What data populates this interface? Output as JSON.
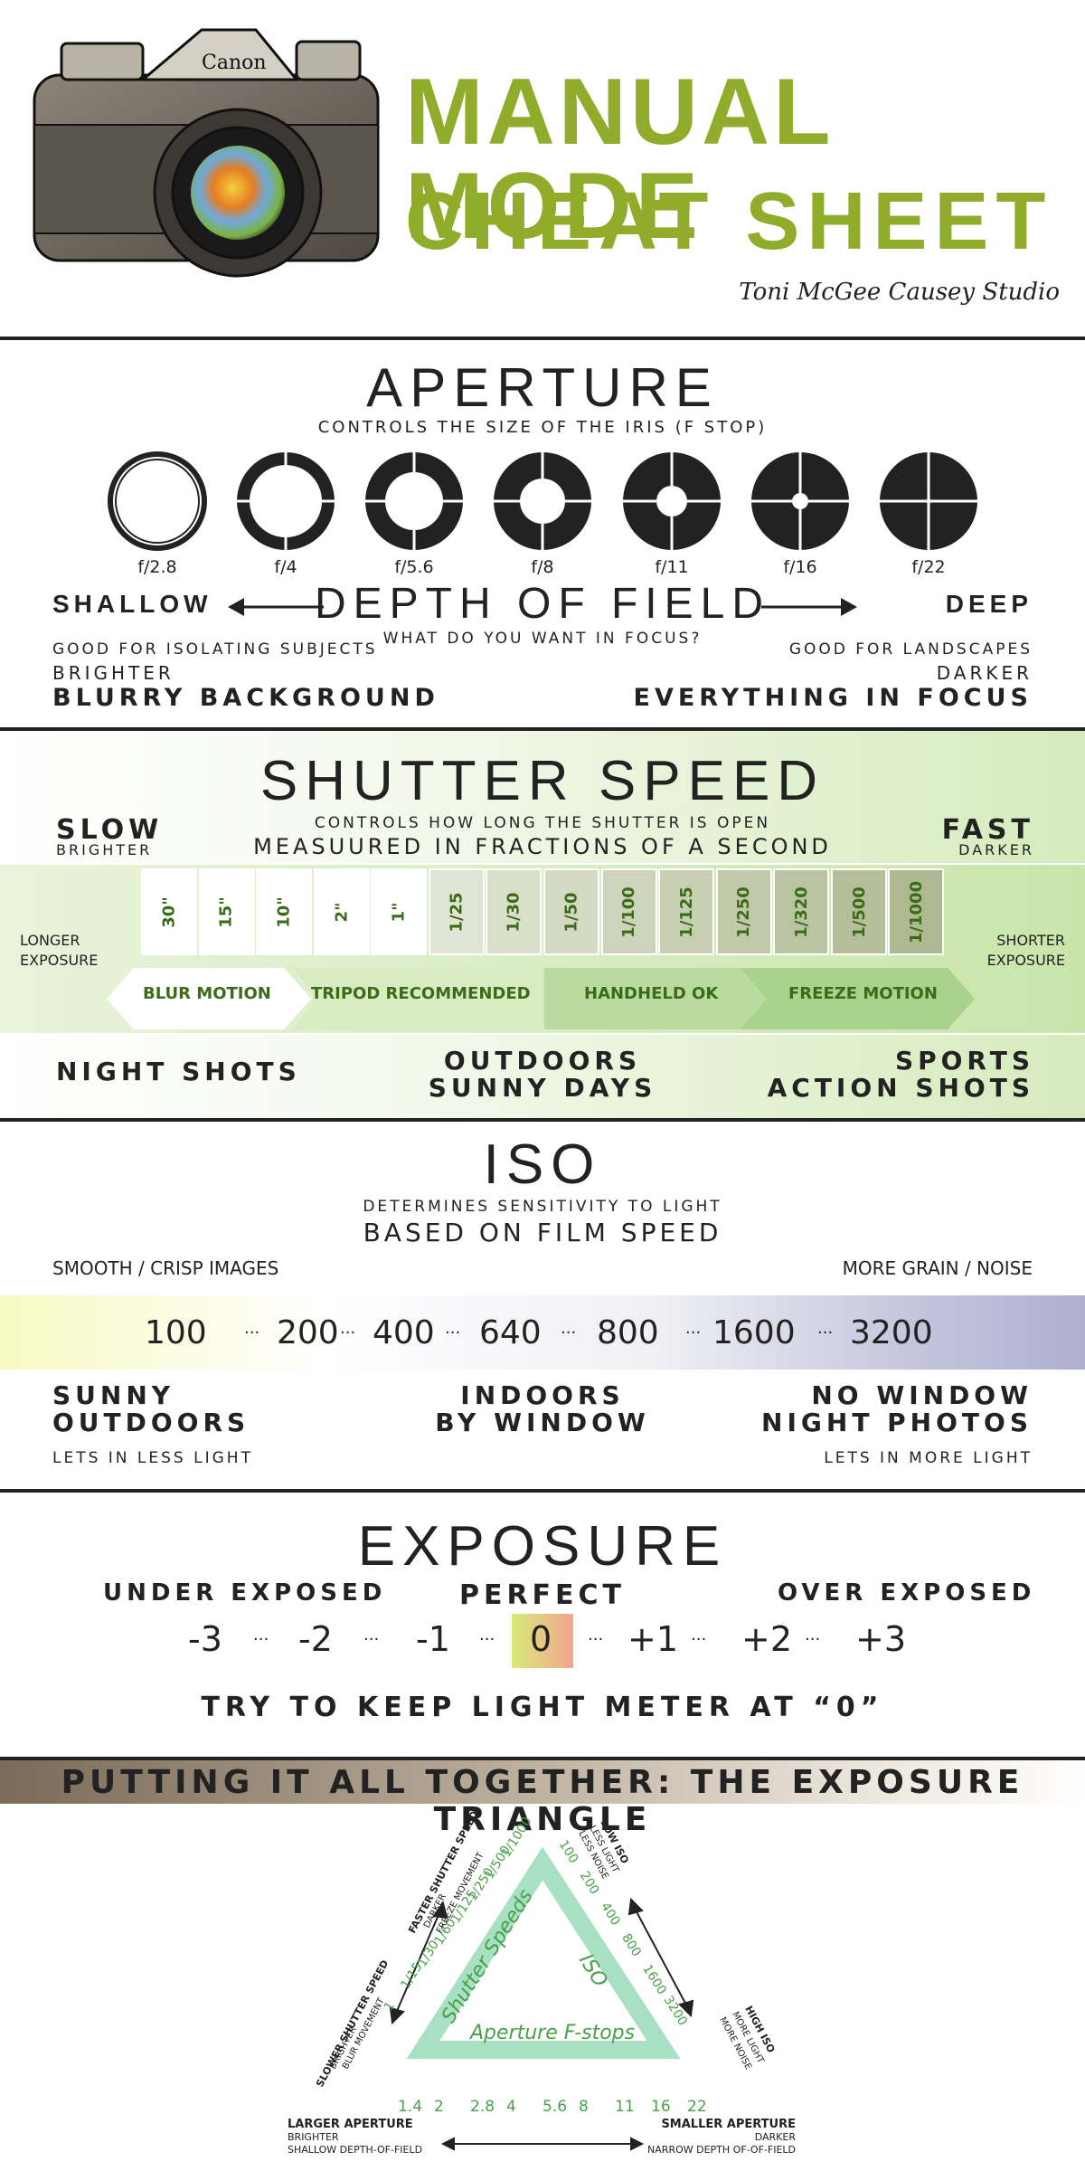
{
  "header": {
    "title_line1": "MANUAL MODE",
    "title_line2": "CHEAT SHEET",
    "studio": "Toni McGee Causey Studio",
    "camera_brand": "Canon"
  },
  "aperture": {
    "title": "APERTURE",
    "subtitle": "CONTROLS THE SIZE OF THE IRIS (F STOP)",
    "fstops": [
      "f/2.8",
      "f/4",
      "f/5.6",
      "f/8",
      "f/11",
      "f/16",
      "f/22"
    ],
    "left_label": "SHALLOW",
    "center_label": "DEPTH OF FIELD",
    "center_sub": "WHAT DO YOU WANT IN FOCUS?",
    "right_label": "DEEP",
    "left_note1": "GOOD FOR ISOLATING SUBJECTS",
    "left_note2": "BRIGHTER",
    "left_note3": "BLURRY BACKGROUND",
    "right_note1": "GOOD FOR LANDSCAPES",
    "right_note2": "DARKER",
    "right_note3": "EVERYTHING IN FOCUS"
  },
  "shutter": {
    "title": "SHUTTER SPEED",
    "sub1": "CONTROLS HOW LONG THE SHUTTER IS OPEN",
    "sub2": "MEASUURED IN FRACTIONS OF A SECOND",
    "slow": "SLOW",
    "slow_sub": "BRIGHTER",
    "fast": "FAST",
    "fast_sub": "DARKER",
    "longer": "LONGER",
    "exposure_word": "EXPOSURE",
    "shorter": "SHORTER",
    "speeds": [
      "30\"",
      "15\"",
      "10\"",
      "2\"",
      "1\"",
      "1/25",
      "1/30",
      "1/50",
      "1/100",
      "1/125",
      "1/250",
      "1/320",
      "1/500",
      "1/1000"
    ],
    "bands": [
      "BLUR MOTION",
      "TRIPOD RECOMMENDED",
      "HANDHELD OK",
      "FREEZE MOTION"
    ],
    "use_left": "NIGHT SHOTS",
    "use_mid1": "OUTDOORS",
    "use_mid2": "SUNNY DAYS",
    "use_right1": "SPORTS",
    "use_right2": "ACTION SHOTS"
  },
  "iso": {
    "title": "ISO",
    "sub1": "DETERMINES SENSITIVITY TO LIGHT",
    "sub2": "BASED ON FILM SPEED",
    "left_note": "SMOOTH / CRISP IMAGES",
    "right_note": "MORE GRAIN / NOISE",
    "values": [
      "100",
      "200",
      "400",
      "640",
      "800",
      "1600",
      "3200"
    ],
    "separator": "···",
    "left1": "SUNNY",
    "left2": "OUTDOORS",
    "left_small": "LETS IN LESS LIGHT",
    "mid1": "INDOORS",
    "mid2": "BY WINDOW",
    "right1": "NO WINDOW",
    "right2": "NIGHT PHOTOS",
    "right_small": "LETS IN MORE LIGHT"
  },
  "exposure": {
    "title": "EXPOSURE",
    "under": "UNDER EXPOSED",
    "perfect": "PERFECT",
    "over": "OVER EXPOSED",
    "meter": [
      "-3",
      "-2",
      "-1",
      "0",
      "+1",
      "+2",
      "+3"
    ],
    "dots": "···",
    "tip": "TRY TO KEEP LIGHT METER AT “0”"
  },
  "triangle": {
    "banner": "PUTTING IT ALL TOGETHER: THE EXPOSURE TRIANGLE",
    "left_side_label": "Shutter Speeds",
    "right_side_label": "ISO",
    "bottom_side_label": "Aperture F-stops",
    "shutter_values": [
      "1",
      "1/15",
      "1/30",
      "1/60",
      "1/125",
      "1/250",
      "1/500",
      "1/1000"
    ],
    "iso_values": [
      "100",
      "200",
      "400",
      "800",
      "1600",
      "3200"
    ],
    "fstop_values": [
      "1.4",
      "2",
      "2.8",
      "4",
      "5.6",
      "8",
      "11",
      "16",
      "22"
    ],
    "faster1": "FASTER SHUTTER SPEED",
    "faster2": "DARKER",
    "faster3": "FREEZE MOVEMENT",
    "slower1": "SLOWER SHUTTER SPEED",
    "slower2": "BRIGHTER",
    "slower3": "BLUR MOVEMENT",
    "lowiso1": "LOW ISO",
    "lowiso2": "LESS LIGHT",
    "lowiso3": "LESS NOISE",
    "highiso1": "HIGH ISO",
    "highiso2": "MORE LIGHT",
    "highiso3": "MORE NOISE",
    "larger1": "LARGER APERTURE",
    "larger2": "BRIGHTER",
    "larger3": "SHALLOW DEPTH-OF-FIELD",
    "smaller1": "SMALLER APERTURE",
    "smaller2": "DARKER",
    "smaller3": "NARROW DEPTH OF-OF-FIELD"
  },
  "colors": {
    "brand_green": "#8fad2b",
    "dark_green": "#3b6b18",
    "triangle_mint": "#a8e0c4"
  }
}
